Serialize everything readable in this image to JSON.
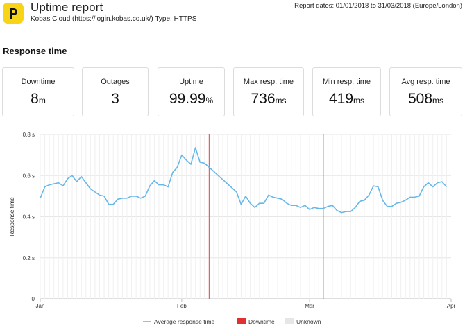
{
  "header": {
    "title": "Uptime report",
    "subtitle": "Kobas Cloud (https://login.kobas.co.uk/) Type: HTTPS",
    "report_dates": "Report dates: 01/01/2018 to 31/03/2018 (Europe/London)",
    "logo_icon": "p-logo-icon",
    "logo_color": "#f7d417"
  },
  "section_title": "Response time",
  "stats": [
    {
      "label": "Downtime",
      "value": "8",
      "unit": "m"
    },
    {
      "label": "Outages",
      "value": "3",
      "unit": ""
    },
    {
      "label": "Uptime",
      "value": "99.99",
      "unit": "%"
    },
    {
      "label": "Max resp. time",
      "value": "736",
      "unit": "ms"
    },
    {
      "label": "Min resp. time",
      "value": "419",
      "unit": "ms"
    },
    {
      "label": "Avg resp. time",
      "value": "508",
      "unit": "ms"
    }
  ],
  "chart_data": {
    "type": "line",
    "title": "",
    "xlabel": "",
    "ylabel": "Response time",
    "y_tick_labels": [
      "0",
      "0.2 s",
      "0.4 s",
      "0.6 s",
      "0.8 s"
    ],
    "y_ticks": [
      0,
      0.2,
      0.4,
      0.6,
      0.8
    ],
    "ylim": [
      0,
      0.8
    ],
    "x_tick_labels": [
      "Jan",
      "Feb",
      "Mar",
      "Apr"
    ],
    "x_ticks": [
      "2018-01-01",
      "2018-02-01",
      "2018-03-01",
      "2018-04-01"
    ],
    "xlim": [
      "2018-01-01",
      "2018-04-01"
    ],
    "grid": true,
    "series": [
      {
        "name": "Average response time",
        "color": "#67b7e8",
        "x": [
          "2018-01-01",
          "2018-01-02",
          "2018-01-03",
          "2018-01-04",
          "2018-01-05",
          "2018-01-06",
          "2018-01-07",
          "2018-01-08",
          "2018-01-09",
          "2018-01-10",
          "2018-01-11",
          "2018-01-12",
          "2018-01-13",
          "2018-01-14",
          "2018-01-15",
          "2018-01-16",
          "2018-01-17",
          "2018-01-18",
          "2018-01-19",
          "2018-01-20",
          "2018-01-21",
          "2018-01-22",
          "2018-01-23",
          "2018-01-24",
          "2018-01-25",
          "2018-01-26",
          "2018-01-27",
          "2018-01-28",
          "2018-01-29",
          "2018-01-30",
          "2018-01-31",
          "2018-02-01",
          "2018-02-02",
          "2018-02-03",
          "2018-02-04",
          "2018-02-05",
          "2018-02-06",
          "2018-02-07",
          "2018-02-08",
          "2018-02-09",
          "2018-02-10",
          "2018-02-11",
          "2018-02-12",
          "2018-02-13",
          "2018-02-14",
          "2018-02-15",
          "2018-02-16",
          "2018-02-17",
          "2018-02-18",
          "2018-02-19",
          "2018-02-20",
          "2018-02-21",
          "2018-02-22",
          "2018-02-23",
          "2018-02-24",
          "2018-02-25",
          "2018-02-26",
          "2018-02-27",
          "2018-02-28",
          "2018-03-01",
          "2018-03-02",
          "2018-03-03",
          "2018-03-04",
          "2018-03-05",
          "2018-03-06",
          "2018-03-07",
          "2018-03-08",
          "2018-03-09",
          "2018-03-10",
          "2018-03-11",
          "2018-03-12",
          "2018-03-13",
          "2018-03-14",
          "2018-03-15",
          "2018-03-16",
          "2018-03-17",
          "2018-03-18",
          "2018-03-19",
          "2018-03-20",
          "2018-03-21",
          "2018-03-22",
          "2018-03-23",
          "2018-03-24",
          "2018-03-25",
          "2018-03-26",
          "2018-03-27",
          "2018-03-28",
          "2018-03-29",
          "2018-03-30",
          "2018-03-31"
        ],
        "y": [
          0.49,
          0.545,
          0.555,
          0.56,
          0.565,
          0.55,
          0.585,
          0.6,
          0.57,
          0.595,
          0.565,
          0.535,
          0.52,
          0.505,
          0.5,
          0.46,
          0.46,
          0.485,
          0.49,
          0.49,
          0.5,
          0.5,
          0.49,
          0.5,
          0.55,
          0.575,
          0.555,
          0.555,
          0.545,
          0.615,
          0.64,
          0.7,
          0.675,
          0.655,
          0.736,
          0.665,
          0.66,
          0.64,
          0.62,
          0.6,
          0.58,
          0.56,
          0.54,
          0.52,
          0.46,
          0.5,
          0.465,
          0.445,
          0.465,
          0.465,
          0.505,
          0.495,
          0.49,
          0.485,
          0.465,
          0.455,
          0.455,
          0.445,
          0.455,
          0.435,
          0.445,
          0.44,
          0.44,
          0.45,
          0.455,
          0.43,
          0.42,
          0.425,
          0.425,
          0.445,
          0.475,
          0.48,
          0.505,
          0.55,
          0.545,
          0.48,
          0.45,
          0.45,
          0.465,
          0.47,
          0.48,
          0.495,
          0.495,
          0.5,
          0.545,
          0.565,
          0.545,
          0.565,
          0.57,
          0.545
        ]
      }
    ],
    "downtime_events": [
      "2018-02-07",
      "2018-03-04"
    ],
    "legend": {
      "placement": "bottom",
      "items": [
        {
          "label": "Average response time",
          "color": "#67b7e8",
          "kind": "line"
        },
        {
          "label": "Downtime",
          "color": "#e03131",
          "kind": "box"
        },
        {
          "label": "Unknown",
          "color": "#e6e6e6",
          "kind": "box"
        }
      ]
    }
  }
}
